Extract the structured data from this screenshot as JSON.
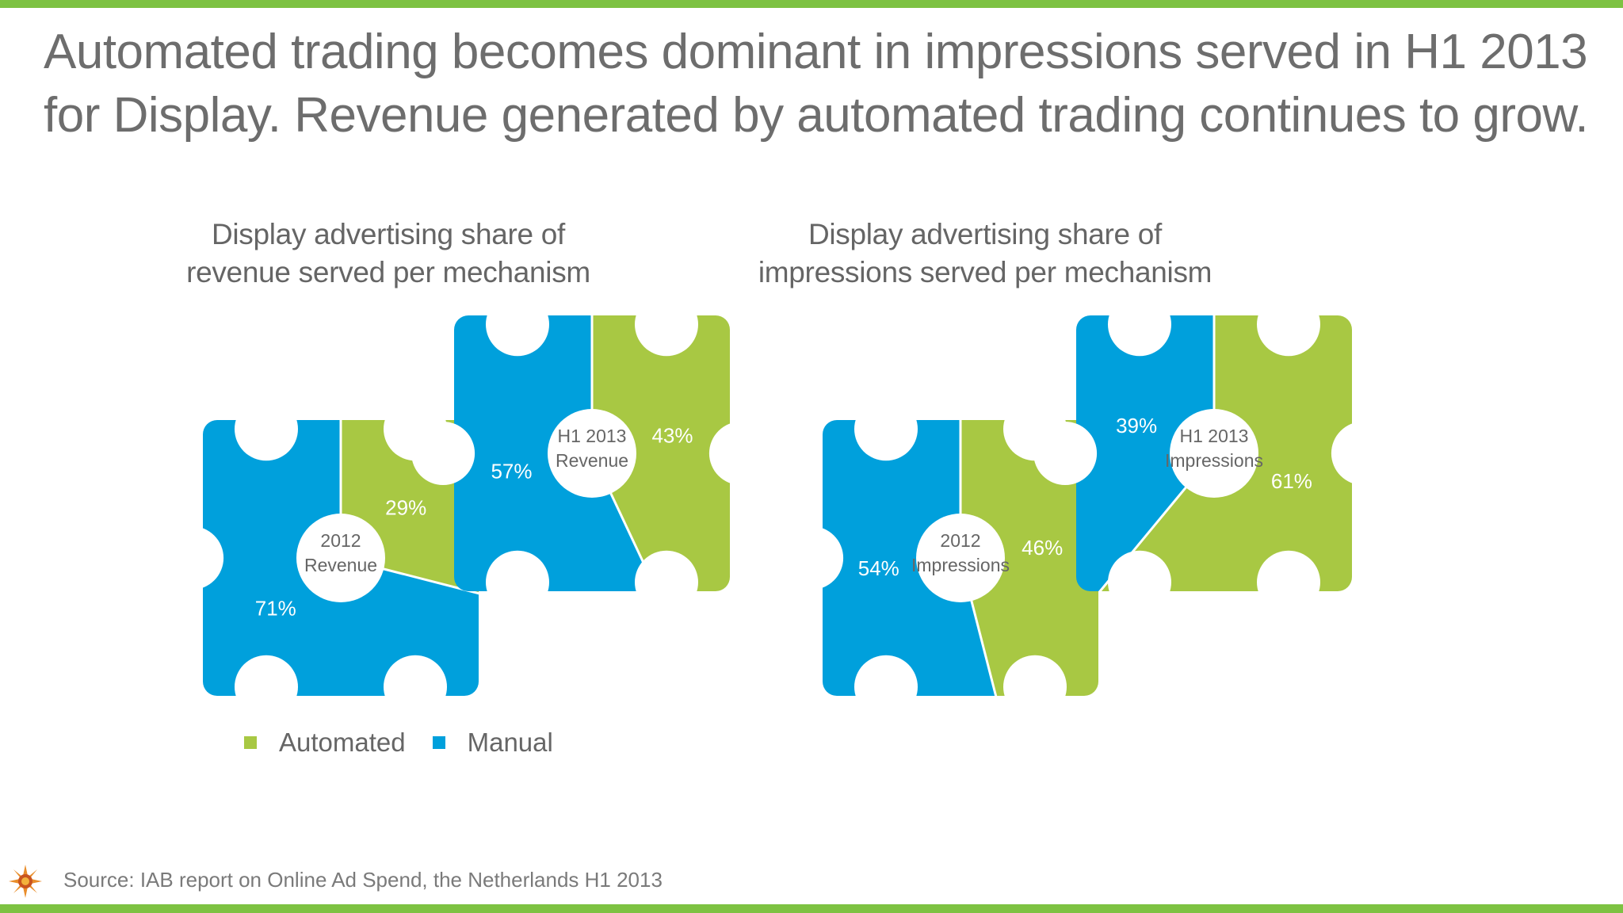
{
  "title": "Automated trading becomes dominant in impressions served in H1 2013 for Display. Revenue generated by automated trading continues to grow.",
  "source": "Source: IAB report on Online Ad Spend, the Netherlands H1 2013",
  "legend": {
    "automated": "Automated",
    "manual": "Manual"
  },
  "colors": {
    "automated": "#a8c843",
    "manual": "#00a0dc",
    "accent": "#7dc242",
    "text": "#6d6d6d"
  },
  "icons": {
    "logo": "sun-logo-icon"
  },
  "chart_data": [
    {
      "type": "pie",
      "title": "Display advertising share of revenue served per mechanism",
      "title_lines": [
        "Display advertising share of",
        "revenue served per mechanism"
      ],
      "gears": [
        {
          "center_label": [
            "2012",
            "Revenue"
          ],
          "slices": [
            {
              "series": "Automated",
              "value": 29,
              "label": "29%"
            },
            {
              "series": "Manual",
              "value": 71,
              "label": "71%"
            }
          ]
        },
        {
          "center_label": [
            "H1 2013",
            "Revenue"
          ],
          "slices": [
            {
              "series": "Automated",
              "value": 43,
              "label": "43%"
            },
            {
              "series": "Manual",
              "value": 57,
              "label": "57%"
            }
          ]
        }
      ]
    },
    {
      "type": "pie",
      "title": "Display advertising share of impressions served per mechanism",
      "title_lines": [
        "Display advertising share of",
        "impressions served per mechanism"
      ],
      "gears": [
        {
          "center_label": [
            "2012",
            "Impressions"
          ],
          "slices": [
            {
              "series": "Automated",
              "value": 46,
              "label": "46%"
            },
            {
              "series": "Manual",
              "value": 54,
              "label": "54%"
            }
          ]
        },
        {
          "center_label": [
            "H1 2013",
            "Impressions"
          ],
          "slices": [
            {
              "series": "Automated",
              "value": 61,
              "label": "61%"
            },
            {
              "series": "Manual",
              "value": 39,
              "label": "39%"
            }
          ]
        }
      ]
    }
  ]
}
